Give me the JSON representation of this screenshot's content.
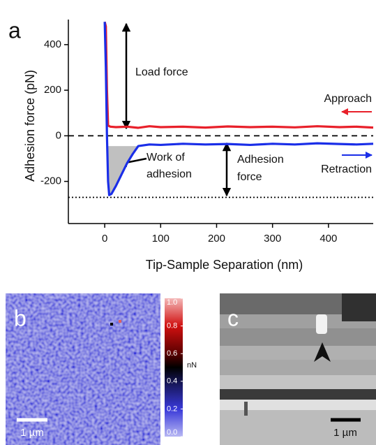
{
  "chart_data": [
    {
      "type": "line",
      "panel_label": "a",
      "x_label": "Tip-Sample Separation (nm)",
      "y_label": "Adhesion force (pN)",
      "xlim": [
        -65,
        480
      ],
      "ylim": [
        -385,
        510
      ],
      "xticks": [
        0,
        100,
        200,
        300,
        400
      ],
      "yticks": [
        -200,
        0,
        200,
        400
      ],
      "hlines": [
        {
          "value": 0,
          "style": "dashed"
        },
        {
          "value": -270,
          "style": "dotted"
        }
      ],
      "series": [
        {
          "name": "Approach",
          "color": "#e8202a",
          "x": [
            0,
            2,
            4,
            6,
            10,
            20,
            40,
            60,
            80,
            100,
            140,
            180,
            220,
            260,
            300,
            340,
            380,
            420,
            450,
            480
          ],
          "values": [
            500,
            480,
            200,
            45,
            40,
            38,
            40,
            35,
            42,
            38,
            40,
            36,
            41,
            38,
            40,
            37,
            42,
            38,
            40,
            36
          ]
        },
        {
          "name": "Retraction",
          "color": "#1a2ee8",
          "x": [
            0,
            2,
            4,
            6,
            8,
            12,
            20,
            30,
            40,
            50,
            60,
            80,
            100,
            140,
            180,
            220,
            260,
            300,
            340,
            380,
            420,
            450,
            480
          ],
          "values": [
            500,
            300,
            0,
            -200,
            -260,
            -255,
            -220,
            -170,
            -120,
            -80,
            -45,
            -38,
            -40,
            -35,
            -38,
            -36,
            -40,
            -35,
            -38,
            -33,
            -36,
            -38,
            -35
          ]
        }
      ],
      "annotations": {
        "load_force": "Load force",
        "work_of_adhesion": [
          "Work of",
          "adhesion"
        ],
        "adhesion_force": [
          "Adhesion",
          "force"
        ]
      }
    },
    {
      "type": "heatmap",
      "panel_label": "b",
      "colorbar_label": "nN",
      "clim": [
        0,
        1
      ],
      "cticks": [
        {
          "value": 0,
          "label": "0.0"
        },
        {
          "value": 0.2,
          "label": "0.2"
        },
        {
          "value": 0.4,
          "label": "0.4"
        },
        {
          "value": 0.6,
          "label": "0.6"
        },
        {
          "value": 0.8,
          "label": "0.8"
        },
        {
          "value": 1,
          "label": "1.0"
        }
      ],
      "scale_bar": "1 µm"
    },
    {
      "type": "image",
      "panel_label": "c",
      "scale_bar": "1 µm"
    }
  ]
}
